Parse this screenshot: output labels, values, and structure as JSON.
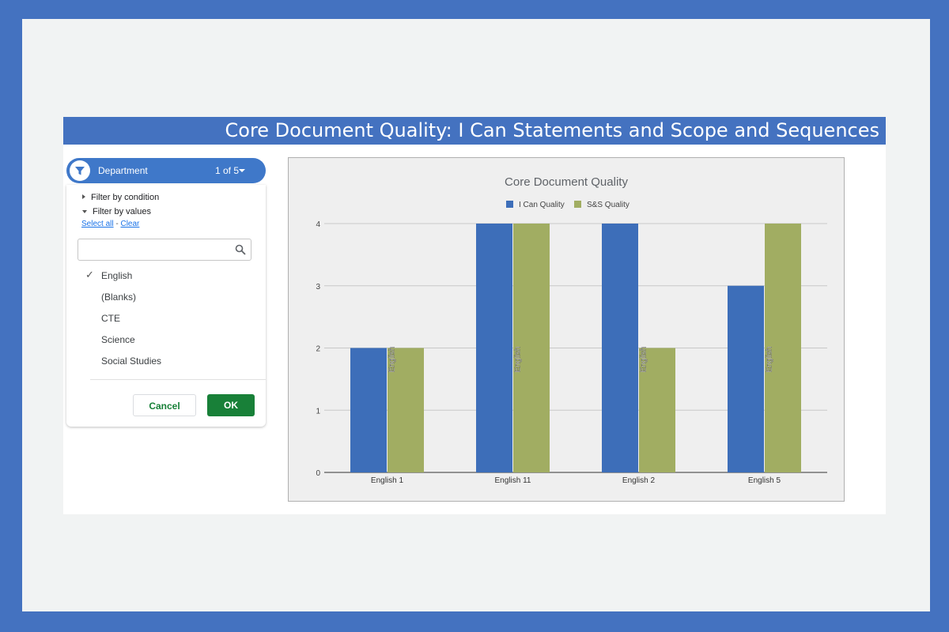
{
  "banner": {
    "title": "Core Document Quality: I Can Statements and Scope and Sequences"
  },
  "filter": {
    "pill_label": "Department",
    "pill_count": "1 of 5",
    "filter_by_condition": "Filter by condition",
    "filter_by_values": "Filter by values",
    "select_all": "Select all",
    "separator": " - ",
    "clear": "Clear",
    "search_value": "",
    "values": [
      {
        "label": "English",
        "checked": true
      },
      {
        "label": "(Blanks)",
        "checked": false
      },
      {
        "label": "CTE",
        "checked": false
      },
      {
        "label": "Science",
        "checked": false
      },
      {
        "label": "Social Studies",
        "checked": false
      }
    ],
    "check_glyph": "✓",
    "cancel_label": "Cancel",
    "ok_label": "OK",
    "icons": {
      "funnel": "filter-funnel-icon",
      "dropdown": "caret-down-icon",
      "search": "search-icon"
    }
  },
  "chart_data": {
    "type": "bar",
    "title": "Core Document Quality",
    "categories": [
      "English 1",
      "English 11",
      "English 2",
      "English 5"
    ],
    "series": [
      {
        "name": "I Can Quality",
        "values": [
          2,
          4,
          4,
          3
        ],
        "color": "#3d6eb9"
      },
      {
        "name": "S&S Quality",
        "values": [
          2,
          4,
          2,
          4
        ],
        "color": "#a1ad62"
      }
    ],
    "bar_labels": [
      "English",
      "English",
      "English",
      "English"
    ],
    "ylim": [
      0,
      4
    ],
    "yticks": [
      0,
      1,
      2,
      3,
      4
    ],
    "grid": true,
    "legend": "top"
  }
}
